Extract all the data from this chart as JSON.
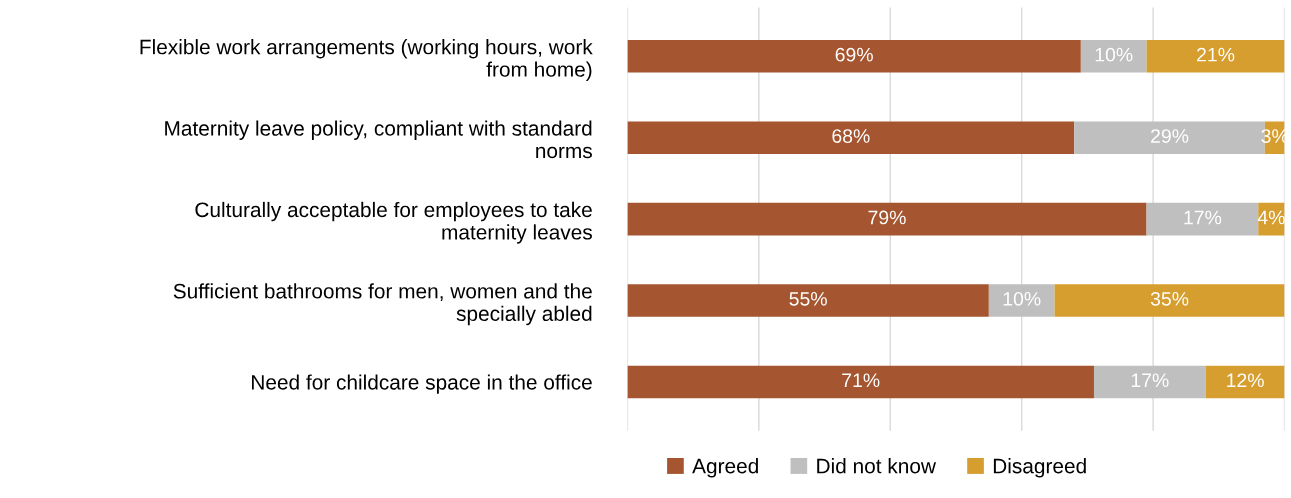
{
  "chart_data": {
    "type": "bar",
    "orientation": "horizontal",
    "stacked": true,
    "categories": [
      "Flexible work arrangements (working hours, work\nfrom home)",
      "Maternity leave policy, compliant with standard\nnorms",
      "Culturally acceptable for employees to take\nmaternity leaves",
      "Sufficient bathrooms for men, women and the\nspecially abled",
      "Need for childcare space in the office"
    ],
    "series": [
      {
        "name": "Agreed",
        "color": "#a5552f",
        "values": [
          69,
          68,
          79,
          55,
          71
        ],
        "value_labels": [
          "69%",
          "68%",
          "79%",
          "55%",
          "71%"
        ]
      },
      {
        "name": "Did not know",
        "color": "#bfbfbf",
        "values": [
          10,
          29,
          17,
          10,
          17
        ],
        "value_labels": [
          "10%",
          "29%",
          "17%",
          "10%",
          "17%"
        ]
      },
      {
        "name": "Disagreed",
        "color": "#d69e2e",
        "values": [
          21,
          3,
          4,
          35,
          12
        ],
        "value_labels": [
          "21%",
          "3%",
          "4%",
          "35%",
          "12%"
        ]
      }
    ],
    "grid": "x",
    "legend": "bottom",
    "tick_labels": "y"
  }
}
